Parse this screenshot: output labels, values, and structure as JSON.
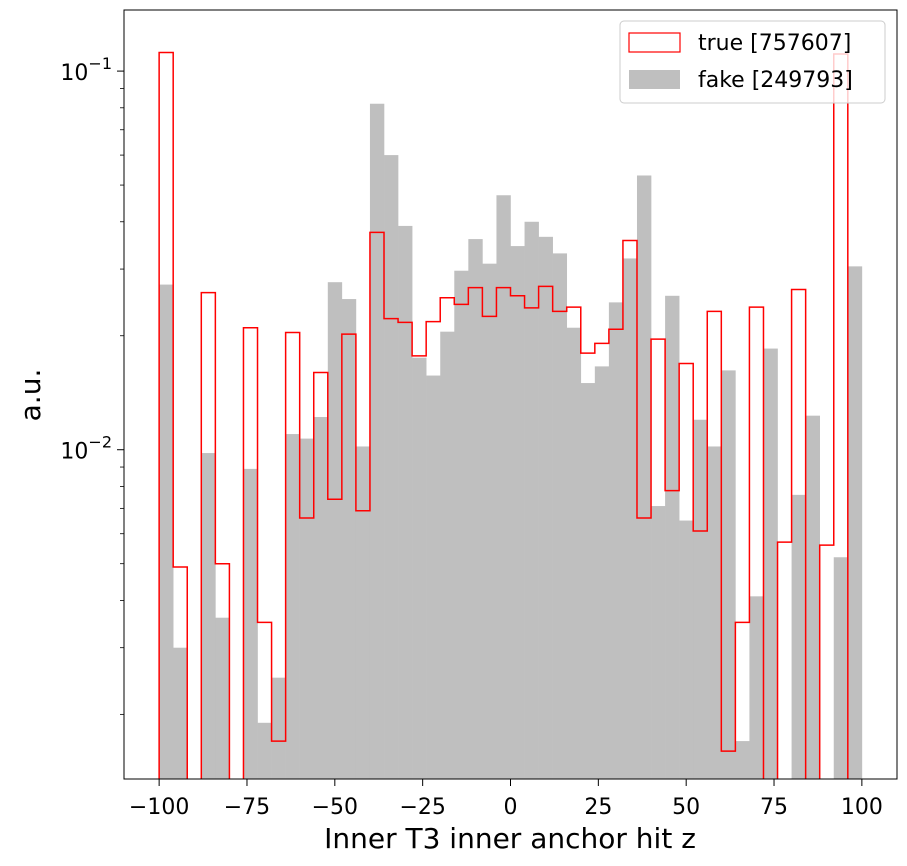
{
  "chart_data": {
    "type": "histogram",
    "title": "",
    "xlabel": "Inner T3 inner anchor hit z",
    "ylabel": "a.u.",
    "xlim": [
      -110,
      110
    ],
    "ylim": [
      0.00135,
      0.145
    ],
    "yscale": "log",
    "grid": false,
    "legend_position": "top-right",
    "bin_edges": [
      -100,
      -96,
      -92,
      -88,
      -84,
      -80,
      -76,
      -72,
      -68,
      -64,
      -60,
      -56,
      -52,
      -48,
      -44,
      -40,
      -36,
      -32,
      -28,
      -24,
      -20,
      -16,
      -12,
      -8,
      -4,
      0,
      4,
      8,
      12,
      16,
      20,
      24,
      28,
      32,
      36,
      40,
      44,
      48,
      52,
      56,
      60,
      64,
      68,
      72,
      76,
      80,
      84,
      88,
      92,
      96,
      100
    ],
    "x_ticks": [
      -100,
      -75,
      -50,
      -25,
      0,
      25,
      50,
      75,
      100
    ],
    "x_tick_labels": [
      "−100",
      "−75",
      "−50",
      "−25",
      "0",
      "25",
      "50",
      "75",
      "100"
    ],
    "y_ticks": [
      0.1,
      0.01
    ],
    "y_tick_labels": [
      {
        "base": "10",
        "exp": "−1"
      },
      {
        "base": "10",
        "exp": "−2"
      }
    ],
    "series": [
      {
        "name": "fake [249793]",
        "style": "filled",
        "color": "#bfbfbf",
        "values": [
          0.0273,
          0.003,
          0,
          0.0098,
          0.0036,
          0,
          0.0089,
          0.0019,
          0.0025,
          0.011,
          0.0107,
          0.0122,
          0.0277,
          0.025,
          0.0102,
          0.082,
          0.06,
          0.039,
          0.0175,
          0.0157,
          0.0205,
          0.0297,
          0.036,
          0.031,
          0.047,
          0.0345,
          0.04,
          0.0365,
          0.033,
          0.021,
          0.015,
          0.0166,
          0.0245,
          0.032,
          0.053,
          0.0071,
          0.0255,
          0.0065,
          0.012,
          0.0102,
          0.0162,
          0.0017,
          0.0041,
          0.0185,
          0,
          0.0076,
          0.0123,
          0,
          0.0052,
          0.0305
        ]
      },
      {
        "name": "true [757607]",
        "style": "step",
        "color": "#ff0000",
        "values": [
          0.112,
          0.0049,
          0,
          0.026,
          0.005,
          0,
          0.021,
          0.0035,
          0.0017,
          0.0204,
          0.0066,
          0.016,
          0.0074,
          0.0202,
          0.0069,
          0.0375,
          0.0222,
          0.0217,
          0.0177,
          0.0218,
          0.0252,
          0.0242,
          0.0268,
          0.0225,
          0.0268,
          0.0255,
          0.0237,
          0.027,
          0.0232,
          0.0238,
          0.018,
          0.0191,
          0.0208,
          0.0357,
          0.0066,
          0.0196,
          0.0078,
          0.0169,
          0.0061,
          0.0232,
          0.0016,
          0.0035,
          0.0238,
          0,
          0.0057,
          0.0265,
          0,
          0.0056,
          0.111,
          0
        ]
      }
    ]
  }
}
